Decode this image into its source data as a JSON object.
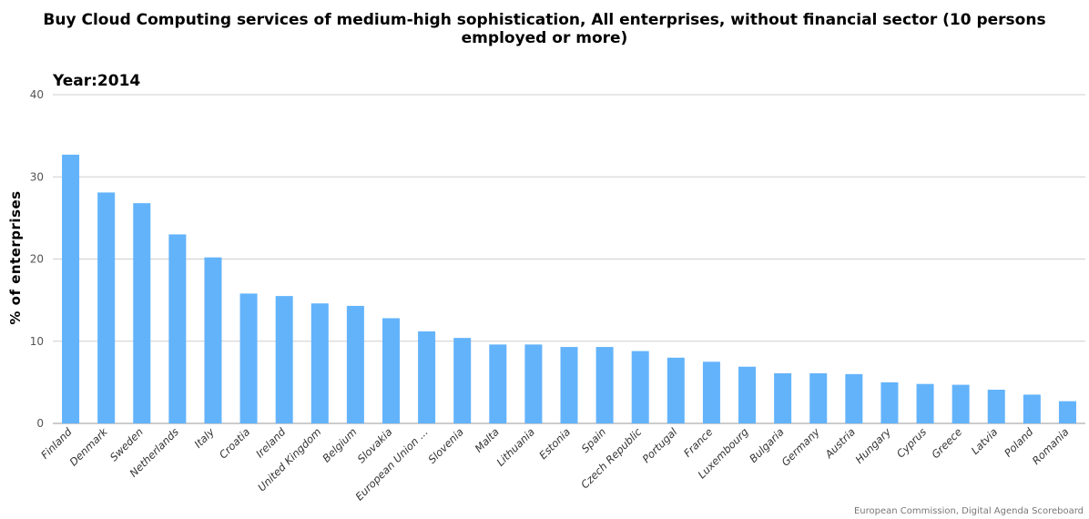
{
  "chart_data": {
    "type": "bar",
    "title": "Buy Cloud Computing services of medium-high sophistication, All enterprises, without financial sector (10 persons employed or more)",
    "subtitle": "Year:2014",
    "xlabel": "",
    "ylabel": "% of enterprises",
    "ylim": [
      0,
      40
    ],
    "yticks": [
      0,
      10,
      20,
      30,
      40
    ],
    "grid": true,
    "bar_color": "#63b3fb",
    "categories": [
      "Finland",
      "Denmark",
      "Sweden",
      "Netherlands",
      "Italy",
      "Croatia",
      "Ireland",
      "United Kingdom",
      "Belgium",
      "Slovakia",
      "European Union ...",
      "Slovenia",
      "Malta",
      "Lithuania",
      "Estonia",
      "Spain",
      "Czech Republic",
      "Portugal",
      "France",
      "Luxembourg",
      "Bulgaria",
      "Germany",
      "Austria",
      "Hungary",
      "Cyprus",
      "Greece",
      "Latvia",
      "Poland",
      "Romania"
    ],
    "values": [
      32.7,
      28.1,
      26.8,
      23.0,
      20.2,
      15.8,
      15.5,
      14.6,
      14.3,
      12.8,
      11.2,
      10.4,
      9.6,
      9.6,
      9.3,
      9.3,
      8.8,
      8.0,
      7.5,
      6.9,
      6.1,
      6.1,
      6.0,
      5.0,
      4.8,
      4.7,
      4.1,
      3.5,
      2.7
    ]
  },
  "credit": "European Commission, Digital Agenda Scoreboard"
}
